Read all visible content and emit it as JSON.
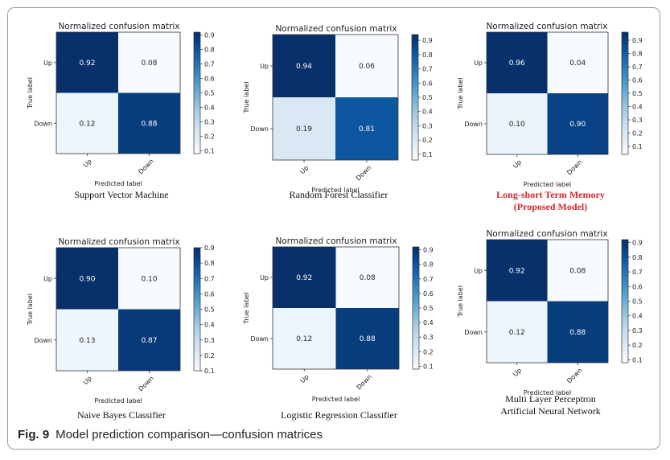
{
  "figure": {
    "label": "Fig. 9",
    "caption": "Model prediction comparison—confusion matrices"
  },
  "chart_data": [
    {
      "type": "heatmap",
      "title": "Normalized confusion matrix",
      "model_name": [
        "Support Vector Machine"
      ],
      "highlight": false,
      "xlabel": "Predicted label",
      "ylabel": "True label",
      "x_categories": [
        "Up",
        "Down"
      ],
      "y_categories": [
        "Up",
        "Down"
      ],
      "values": [
        [
          0.92,
          0.08
        ],
        [
          0.12,
          0.88
        ]
      ],
      "colorbar": {
        "ticks": [
          "0.1",
          "0.2",
          "0.3",
          "0.4",
          "0.5",
          "0.6",
          "0.7",
          "0.8",
          "0.9"
        ],
        "vmin": 0.08,
        "vmax": 0.92
      }
    },
    {
      "type": "heatmap",
      "title": "Normalized confusion matrix",
      "model_name": [
        "Random Forest Classifier"
      ],
      "highlight": false,
      "xlabel": "Predicted label",
      "ylabel": "True label",
      "x_categories": [
        "Up",
        "Down"
      ],
      "y_categories": [
        "Up",
        "Down"
      ],
      "values": [
        [
          0.94,
          0.06
        ],
        [
          0.19,
          0.81
        ]
      ],
      "colorbar": {
        "ticks": [
          "0.1",
          "0.2",
          "0.3",
          "0.4",
          "0.5",
          "0.6",
          "0.7",
          "0.8",
          "0.9"
        ],
        "vmin": 0.06,
        "vmax": 0.94
      }
    },
    {
      "type": "heatmap",
      "title": "Normalized confusion matrix",
      "model_name": [
        "Long-short Term Memory",
        "(Proposed Model)"
      ],
      "highlight": true,
      "xlabel": "Predicted label",
      "ylabel": "True label",
      "x_categories": [
        "Up",
        "Down"
      ],
      "y_categories": [
        "Up",
        "Down"
      ],
      "values": [
        [
          0.96,
          0.04
        ],
        [
          0.1,
          0.9
        ]
      ],
      "colorbar": {
        "ticks": [
          "0.1",
          "0.2",
          "0.3",
          "0.4",
          "0.5",
          "0.6",
          "0.7",
          "0.8",
          "0.9"
        ],
        "vmin": 0.04,
        "vmax": 0.96
      }
    },
    {
      "type": "heatmap",
      "title": "Normalized confusion matrix",
      "model_name": [
        "Naive Bayes Classifier"
      ],
      "highlight": false,
      "xlabel": "Predicted label",
      "ylabel": "True label",
      "x_categories": [
        "Up",
        "Down"
      ],
      "y_categories": [
        "Up",
        "Down"
      ],
      "values": [
        [
          0.9,
          0.1
        ],
        [
          0.13,
          0.87
        ]
      ],
      "colorbar": {
        "ticks": [
          "0.1",
          "0.2",
          "0.3",
          "0.4",
          "0.5",
          "0.6",
          "0.7",
          "0.8",
          "0.9"
        ],
        "vmin": 0.1,
        "vmax": 0.9
      }
    },
    {
      "type": "heatmap",
      "title": "Normalized confusion matrix",
      "model_name": [
        "Logistic Regression Classifier"
      ],
      "highlight": false,
      "xlabel": "Predicted label",
      "ylabel": "True label",
      "x_categories": [
        "Up",
        "Down"
      ],
      "y_categories": [
        "Up",
        "Down"
      ],
      "values": [
        [
          0.92,
          0.08
        ],
        [
          0.12,
          0.88
        ]
      ],
      "colorbar": {
        "ticks": [
          "0.1",
          "0.2",
          "0.3",
          "0.4",
          "0.5",
          "0.6",
          "0.7",
          "0.8",
          "0.9"
        ],
        "vmin": 0.08,
        "vmax": 0.92
      }
    },
    {
      "type": "heatmap",
      "title": "Normalized confusion matrix",
      "model_name": [
        "Multi Layer Perceptron",
        "Artificial Neural Network"
      ],
      "highlight": false,
      "xlabel": "Predicted label",
      "ylabel": "True label",
      "x_categories": [
        "Up",
        "Down"
      ],
      "y_categories": [
        "Up",
        "Down"
      ],
      "values": [
        [
          0.92,
          0.08
        ],
        [
          0.12,
          0.88
        ]
      ],
      "colorbar": {
        "ticks": [
          "0.1",
          "0.2",
          "0.3",
          "0.4",
          "0.5",
          "0.6",
          "0.7",
          "0.8",
          "0.9"
        ],
        "vmin": 0.08,
        "vmax": 0.92
      }
    }
  ]
}
